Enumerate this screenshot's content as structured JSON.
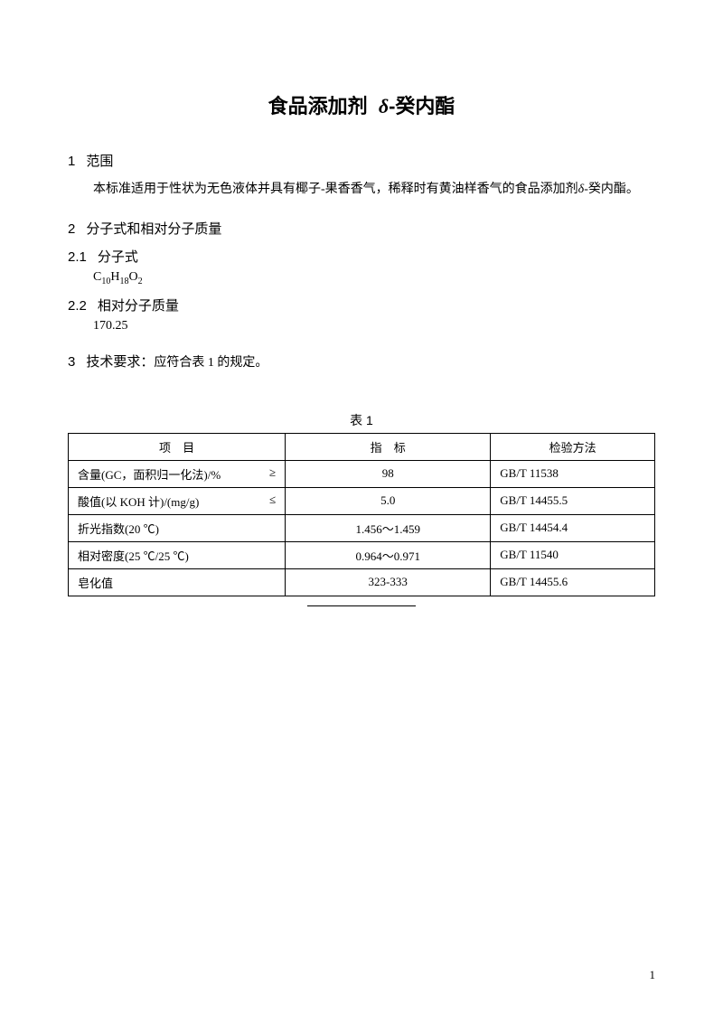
{
  "title_prefix": "食品添加剂",
  "title_delta": "δ",
  "title_suffix": "-癸内酯",
  "section1": {
    "num": "1",
    "heading": "范围",
    "body_prefix": "本标准适用于性状为无色液体并具有椰子-果香香气，稀释时有黄油样香气的食品添加剂",
    "body_delta": "δ",
    "body_suffix": "-癸内酯。"
  },
  "section2": {
    "num": "2",
    "heading": "分子式和相对分子质量",
    "sub1": {
      "num": "2.1",
      "heading": "分子式",
      "formula_c": "C",
      "formula_c_sub": "10",
      "formula_h": "H",
      "formula_h_sub": "18",
      "formula_o": "O",
      "formula_o_sub": "2"
    },
    "sub2": {
      "num": "2.2",
      "heading": "相对分子质量",
      "value": "170.25"
    }
  },
  "section3": {
    "num": "3",
    "heading": "技术要求：",
    "text": "应符合表 1 的规定。"
  },
  "table": {
    "caption": "表 1",
    "header": {
      "col1_a": "项",
      "col1_b": "目",
      "col2_a": "指",
      "col2_b": "标",
      "col3": "检验方法"
    },
    "rows": [
      {
        "item": "含量(GC，面积归一化法)/%",
        "suffix": "≥",
        "spec": "98",
        "method": "GB/T 11538"
      },
      {
        "item": "酸值(以 KOH 计)/(mg/g)",
        "suffix": "≤",
        "spec": "5.0",
        "method": "GB/T 14455.5"
      },
      {
        "item": "折光指数(20 ℃)",
        "suffix": "",
        "spec": "1.456～1.459",
        "method": "GB/T 14454.4"
      },
      {
        "item": "相对密度(25 ℃/25 ℃)",
        "suffix": "",
        "spec": "0.964～0.971",
        "method": "GB/T 11540"
      },
      {
        "item": "皂化值",
        "suffix": "",
        "spec": "323-333",
        "method": "GB/T 14455.6"
      }
    ]
  },
  "page_number": "1"
}
